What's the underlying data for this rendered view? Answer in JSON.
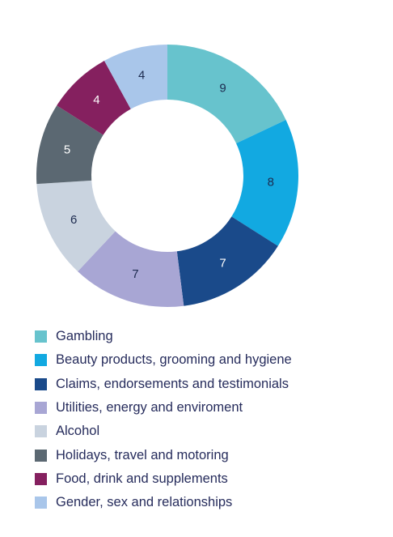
{
  "chart_data": {
    "type": "pie",
    "donut": true,
    "categories": [
      "Gambling",
      "Beauty products, grooming and hygiene",
      "Claims, endorsements and testimonials",
      "Utilities, energy and enviroment",
      "Alcohol",
      "Holidays, travel and motoring",
      "Food, drink and supplements",
      "Gender, sex and relationships"
    ],
    "values": [
      9,
      8,
      7,
      7,
      6,
      5,
      4,
      4
    ],
    "colors": [
      "#67c3cd",
      "#12a9e1",
      "#1a4a8a",
      "#a8a6d4",
      "#c9d3df",
      "#5b6872",
      "#85205f",
      "#a9c6ea"
    ],
    "label_colors": [
      "#1d2b4f",
      "#1d2b4f",
      "#ffffff",
      "#1d2b4f",
      "#1d2b4f",
      "#ffffff",
      "#ffffff",
      "#1d2b4f"
    ],
    "data_labels": [
      "9",
      "8",
      "7",
      "7",
      "6",
      "5",
      "4",
      "4"
    ],
    "legend_position": "bottom",
    "title": "",
    "xlabel": "",
    "ylabel": ""
  }
}
